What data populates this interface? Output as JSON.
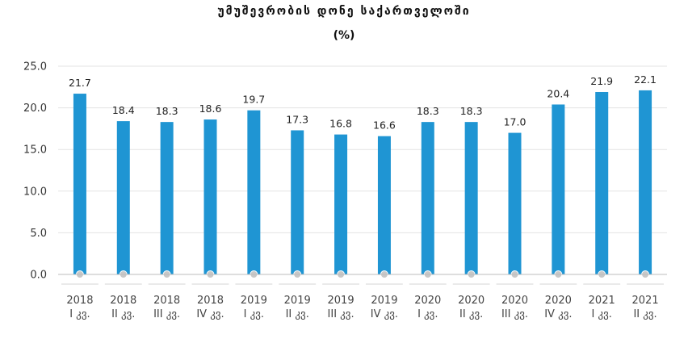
{
  "title": "უმუშევრობის დონე საქართველოში",
  "subtitle": "(%)",
  "chart_data": {
    "type": "bar",
    "categories": [
      [
        "2018",
        "I კვ."
      ],
      [
        "2018",
        "II კვ."
      ],
      [
        "2018",
        "III კვ."
      ],
      [
        "2018",
        "IV კვ."
      ],
      [
        "2019",
        "I კვ."
      ],
      [
        "2019",
        "II კვ."
      ],
      [
        "2019",
        "III კვ."
      ],
      [
        "2019",
        "IV კვ."
      ],
      [
        "2020",
        "I კვ."
      ],
      [
        "2020",
        "II კვ."
      ],
      [
        "2020",
        "III კვ."
      ],
      [
        "2020",
        "IV კვ."
      ],
      [
        "2021",
        "I კვ."
      ],
      [
        "2021",
        "II კვ."
      ]
    ],
    "values": [
      21.7,
      18.4,
      18.3,
      18.6,
      19.7,
      17.3,
      16.8,
      16.6,
      18.3,
      18.3,
      17.0,
      20.4,
      21.9,
      22.1
    ],
    "value_labels": [
      "21.7",
      "18.4",
      "18.3",
      "18.6",
      "19.7",
      "17.3",
      "16.8",
      "16.6",
      "18.3",
      "18.3",
      "17.0",
      "20.4",
      "21.9",
      "22.1"
    ],
    "ylim": [
      0,
      25
    ],
    "yticks": [
      "0.0",
      "5.0",
      "10.0",
      "15.0",
      "20.0",
      "25.0"
    ],
    "grid": true,
    "bar_color": "#1f95d3",
    "grid_color": "#e3e3e3",
    "marker_color": "#c8c8c8"
  }
}
